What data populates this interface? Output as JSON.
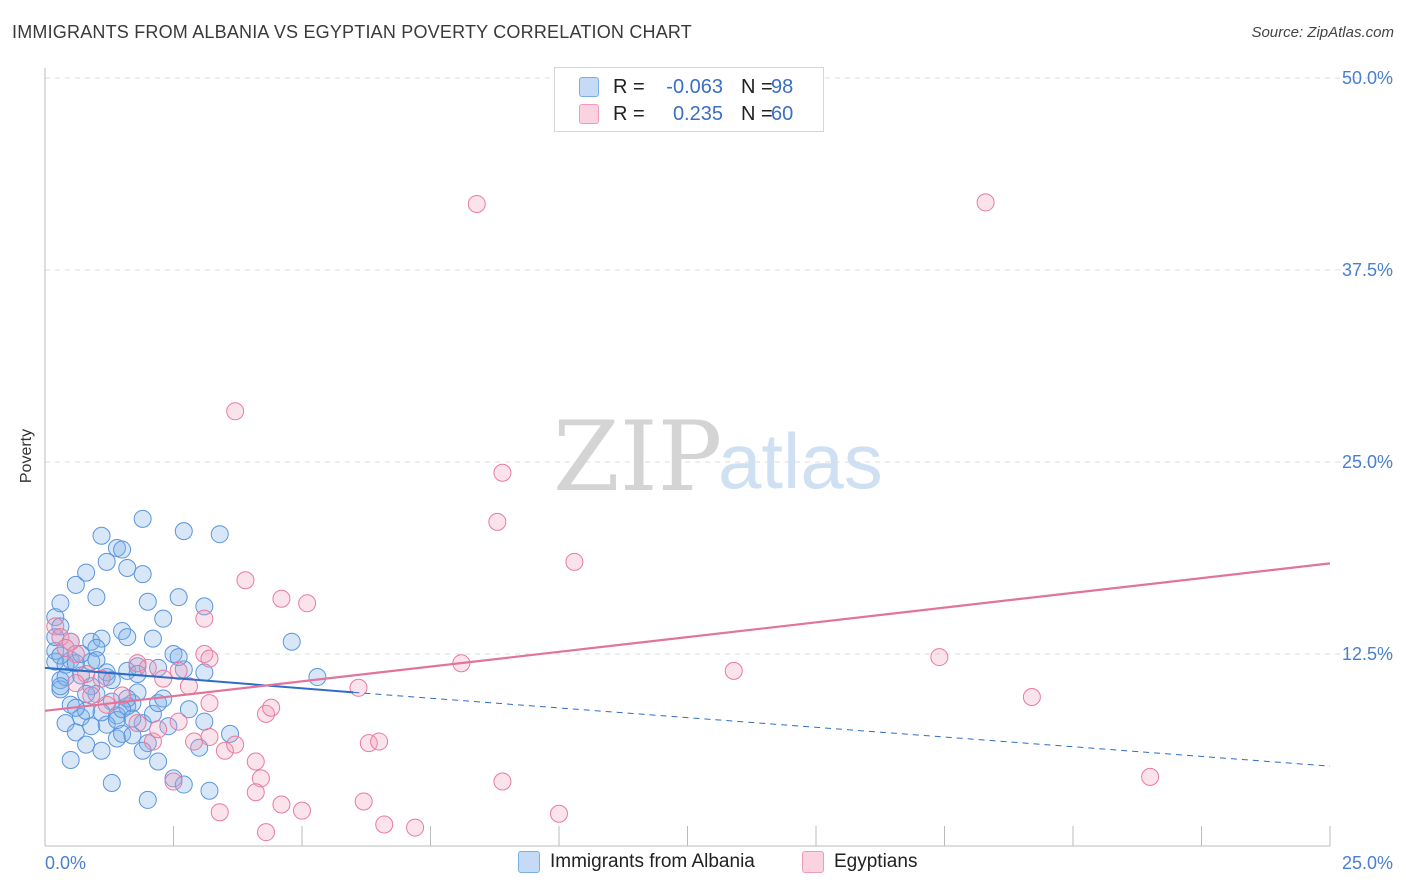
{
  "header": {
    "title": "IMMIGRANTS FROM ALBANIA VS EGYPTIAN POVERTY CORRELATION CHART",
    "source": "Source: ZipAtlas.com"
  },
  "watermark": {
    "zip": "ZIP",
    "atlas": "atlas"
  },
  "legend": {
    "rows": [
      {
        "r_label": "R =",
        "r_value": "-0.063",
        "n_label": "N =",
        "n_value": "98",
        "color": "#7aaee8"
      },
      {
        "r_label": "R =",
        "r_value": "0.235",
        "n_label": "N =",
        "n_value": "60",
        "color": "#f29bb8"
      }
    ]
  },
  "bottom_legend": [
    {
      "label": "Immigrants from Albania",
      "color": "#7aaee8"
    },
    {
      "label": "Egyptians",
      "color": "#f29bb8"
    }
  ],
  "colors": {
    "blue": "#5b95de",
    "pink": "#ea7aa1",
    "blue_line": "#2f6dc7",
    "pink_line": "#e2739b",
    "grid": "#dddddd"
  },
  "chart_data": {
    "type": "scatter",
    "title": "IMMIGRANTS FROM ALBANIA VS EGYPTIAN POVERTY CORRELATION CHART",
    "xlabel": "",
    "ylabel": "Poverty",
    "xlim": [
      0,
      25
    ],
    "ylim": [
      0,
      50
    ],
    "x_tick_labels": [
      "0.0%",
      "25.0%"
    ],
    "y_ticks": [
      12.5,
      25.0,
      37.5,
      50.0
    ],
    "y_tick_labels": [
      "12.5%",
      "25.0%",
      "37.5%",
      "50.0%"
    ],
    "grid": true,
    "series": [
      {
        "name": "Immigrants from Albania",
        "r": -0.063,
        "n": 98,
        "trend": {
          "x0": 0,
          "y0": 11.6,
          "x1": 6.0,
          "y1": 10.0,
          "x_dash_end": 25,
          "y_dash_end": 5.2
        },
        "points": [
          [
            0.2,
            12.0
          ],
          [
            0.3,
            10.8
          ],
          [
            0.5,
            12.1
          ],
          [
            0.2,
            12.7
          ],
          [
            0.3,
            10.2
          ],
          [
            0.7,
            11.1
          ],
          [
            0.4,
            11.8
          ],
          [
            0.2,
            14.9
          ],
          [
            0.3,
            15.8
          ],
          [
            0.6,
            17.0
          ],
          [
            0.8,
            17.8
          ],
          [
            1.0,
            16.2
          ],
          [
            1.2,
            18.5
          ],
          [
            1.4,
            19.4
          ],
          [
            1.6,
            18.1
          ],
          [
            1.9,
            17.7
          ],
          [
            1.1,
            20.2
          ],
          [
            1.5,
            19.3
          ],
          [
            1.9,
            21.3
          ],
          [
            2.7,
            20.5
          ],
          [
            3.4,
            20.3
          ],
          [
            2.1,
            13.5
          ],
          [
            2.0,
            15.9
          ],
          [
            2.3,
            14.8
          ],
          [
            2.6,
            16.2
          ],
          [
            3.1,
            15.6
          ],
          [
            2.5,
            12.5
          ],
          [
            2.7,
            11.5
          ],
          [
            2.2,
            11.6
          ],
          [
            1.6,
            11.4
          ],
          [
            1.8,
            11.7
          ],
          [
            2.6,
            12.3
          ],
          [
            3.1,
            11.3
          ],
          [
            0.9,
            13.3
          ],
          [
            1.1,
            13.5
          ],
          [
            1.0,
            12.9
          ],
          [
            1.5,
            14.0
          ],
          [
            1.6,
            13.6
          ],
          [
            0.9,
            12.0
          ],
          [
            1.2,
            11.0
          ],
          [
            0.5,
            9.2
          ],
          [
            0.7,
            8.4
          ],
          [
            0.8,
            8.8
          ],
          [
            1.0,
            9.9
          ],
          [
            1.3,
            9.4
          ],
          [
            1.4,
            8.5
          ],
          [
            1.6,
            9.1
          ],
          [
            1.7,
            9.3
          ],
          [
            1.8,
            10.0
          ],
          [
            0.4,
            8.0
          ],
          [
            0.6,
            7.4
          ],
          [
            0.9,
            7.8
          ],
          [
            1.2,
            7.9
          ],
          [
            1.4,
            7.0
          ],
          [
            1.5,
            7.3
          ],
          [
            1.7,
            7.2
          ],
          [
            1.9,
            8.0
          ],
          [
            2.1,
            8.6
          ],
          [
            2.2,
            9.3
          ],
          [
            2.8,
            8.9
          ],
          [
            3.1,
            8.1
          ],
          [
            3.6,
            7.3
          ],
          [
            2.0,
            6.7
          ],
          [
            1.9,
            6.2
          ],
          [
            2.2,
            5.5
          ],
          [
            2.5,
            4.4
          ],
          [
            2.7,
            4.0
          ],
          [
            3.0,
            6.4
          ],
          [
            3.2,
            3.6
          ],
          [
            2.0,
            3.0
          ],
          [
            1.3,
            4.1
          ],
          [
            0.5,
            5.6
          ],
          [
            1.1,
            6.2
          ],
          [
            0.8,
            6.6
          ],
          [
            1.4,
            8.2
          ],
          [
            1.6,
            9.6
          ],
          [
            0.6,
            11.9
          ],
          [
            0.4,
            11.0
          ],
          [
            0.3,
            12.4
          ],
          [
            0.2,
            13.6
          ],
          [
            0.3,
            14.3
          ],
          [
            0.5,
            13.3
          ],
          [
            0.7,
            12.5
          ],
          [
            1.0,
            12.1
          ],
          [
            1.2,
            11.3
          ],
          [
            1.8,
            11.2
          ],
          [
            0.3,
            10.4
          ],
          [
            0.6,
            9.0
          ],
          [
            0.9,
            10.4
          ],
          [
            1.3,
            10.8
          ],
          [
            0.8,
            9.9
          ],
          [
            1.1,
            8.7
          ],
          [
            1.5,
            8.9
          ],
          [
            2.3,
            9.6
          ],
          [
            4.8,
            13.3
          ],
          [
            5.3,
            11.0
          ],
          [
            2.4,
            7.8
          ],
          [
            1.7,
            8.3
          ]
        ]
      },
      {
        "name": "Egyptians",
        "r": 0.235,
        "n": 60,
        "trend": {
          "x0": 0,
          "y0": 8.8,
          "x1": 25,
          "y1": 18.4
        },
        "points": [
          [
            8.4,
            41.8
          ],
          [
            18.3,
            41.9
          ],
          [
            3.7,
            28.3
          ],
          [
            8.9,
            24.3
          ],
          [
            8.8,
            21.1
          ],
          [
            10.3,
            18.5
          ],
          [
            3.9,
            17.3
          ],
          [
            4.6,
            16.1
          ],
          [
            5.1,
            15.8
          ],
          [
            3.1,
            14.8
          ],
          [
            3.1,
            12.5
          ],
          [
            3.2,
            12.2
          ],
          [
            8.1,
            11.9
          ],
          [
            13.4,
            11.4
          ],
          [
            17.4,
            12.3
          ],
          [
            19.2,
            9.7
          ],
          [
            0.2,
            14.3
          ],
          [
            0.3,
            13.6
          ],
          [
            0.5,
            13.3
          ],
          [
            0.4,
            12.9
          ],
          [
            0.6,
            12.5
          ],
          [
            0.8,
            11.2
          ],
          [
            1.1,
            10.9
          ],
          [
            0.6,
            10.6
          ],
          [
            0.9,
            9.8
          ],
          [
            1.2,
            9.2
          ],
          [
            1.5,
            9.8
          ],
          [
            1.8,
            11.9
          ],
          [
            2.0,
            11.6
          ],
          [
            2.3,
            10.9
          ],
          [
            2.6,
            11.4
          ],
          [
            2.8,
            10.4
          ],
          [
            3.2,
            9.3
          ],
          [
            4.3,
            8.6
          ],
          [
            4.4,
            9.0
          ],
          [
            2.1,
            6.8
          ],
          [
            2.2,
            7.6
          ],
          [
            2.6,
            8.1
          ],
          [
            2.9,
            6.8
          ],
          [
            3.2,
            7.1
          ],
          [
            3.5,
            6.2
          ],
          [
            3.7,
            6.6
          ],
          [
            4.1,
            5.5
          ],
          [
            4.2,
            4.4
          ],
          [
            4.1,
            3.5
          ],
          [
            4.6,
            2.7
          ],
          [
            5.0,
            2.3
          ],
          [
            6.1,
            10.3
          ],
          [
            6.2,
            2.9
          ],
          [
            6.3,
            6.7
          ],
          [
            6.5,
            6.8
          ],
          [
            6.6,
            1.4
          ],
          [
            7.2,
            1.2
          ],
          [
            8.9,
            4.2
          ],
          [
            10.0,
            2.1
          ],
          [
            21.5,
            4.5
          ],
          [
            4.3,
            0.9
          ],
          [
            3.4,
            2.2
          ],
          [
            2.5,
            4.2
          ],
          [
            1.8,
            8.0
          ]
        ]
      }
    ]
  }
}
